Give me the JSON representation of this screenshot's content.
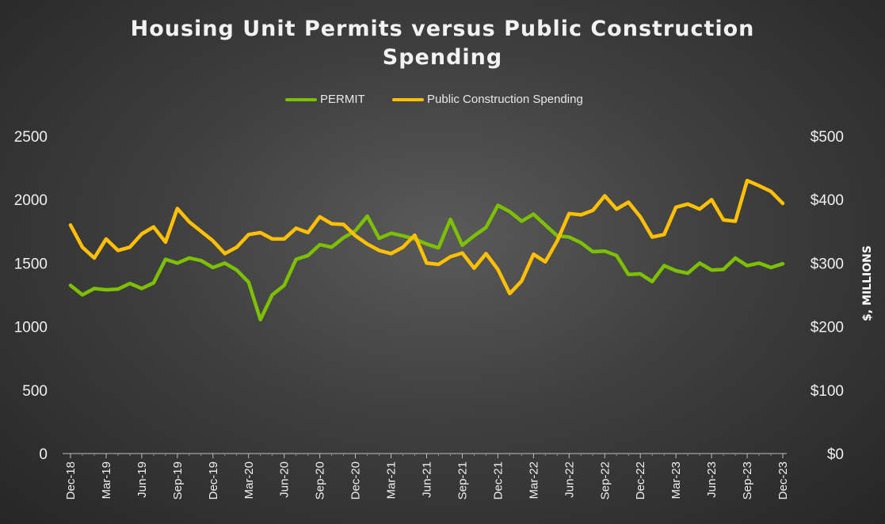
{
  "chart_data": {
    "type": "line",
    "title": "Housing Unit Permits versus Public Construction Spending",
    "title_lines": [
      "Housing Unit Permits versus Public Construction",
      "Spending"
    ],
    "ylabel_right": "$, MILLIONS",
    "left_axis": {
      "ylim": [
        0,
        2500
      ],
      "ticks": [
        "0",
        "500",
        "1000",
        "1500",
        "2000",
        "2500"
      ]
    },
    "right_axis": {
      "ylim": [
        0,
        500
      ],
      "ticks": [
        "$0",
        "$100",
        "$200",
        "$300",
        "$400",
        "$500"
      ]
    },
    "x_tick_labels": [
      "Dec-18",
      "Mar-19",
      "Jun-19",
      "Sep-19",
      "Dec-19",
      "Mar-20",
      "Jun-20",
      "Sep-20",
      "Dec-20",
      "Mar-21",
      "Jun-21",
      "Sep-21",
      "Dec-21",
      "Mar-22",
      "Jun-22",
      "Sep-22",
      "Dec-22",
      "Mar-23",
      "Jun-23",
      "Sep-23",
      "Dec-23"
    ],
    "grid": false,
    "legend_position": "top-center",
    "series": [
      {
        "name": "PERMIT",
        "axis": "left",
        "color": "#7cc000",
        "values": [
          1325,
          1250,
          1300,
          1290,
          1295,
          1340,
          1300,
          1345,
          1530,
          1500,
          1540,
          1520,
          1465,
          1500,
          1445,
          1350,
          1055,
          1250,
          1325,
          1530,
          1560,
          1645,
          1625,
          1700,
          1755,
          1870,
          1695,
          1735,
          1715,
          1690,
          1650,
          1620,
          1845,
          1640,
          1715,
          1780,
          1955,
          1905,
          1830,
          1885,
          1800,
          1715,
          1705,
          1660,
          1590,
          1595,
          1560,
          1410,
          1415,
          1355,
          1480,
          1440,
          1420,
          1500,
          1445,
          1450,
          1540,
          1480,
          1500,
          1465,
          1495
        ]
      },
      {
        "name": "Public Construction Spending",
        "axis": "right",
        "color": "#ffc000",
        "values": [
          360,
          325,
          308,
          338,
          320,
          325,
          346,
          357,
          333,
          386,
          365,
          350,
          335,
          315,
          325,
          345,
          348,
          338,
          338,
          355,
          348,
          373,
          362,
          361,
          343,
          330,
          320,
          315,
          325,
          344,
          300,
          298,
          310,
          316,
          292,
          315,
          290,
          252,
          272,
          314,
          302,
          335,
          378,
          376,
          383,
          406,
          385,
          396,
          373,
          341,
          345,
          388,
          393,
          385,
          400,
          368,
          366,
          430,
          422,
          413,
          394
        ]
      }
    ]
  }
}
